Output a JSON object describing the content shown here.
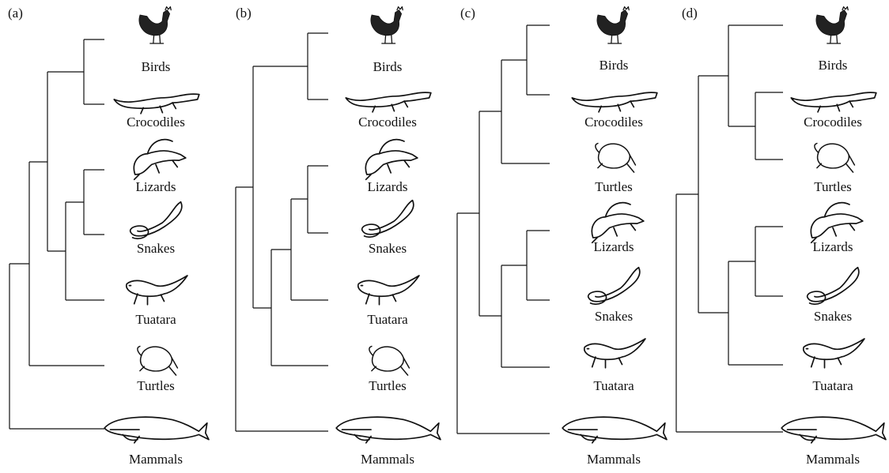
{
  "panels": [
    {
      "label": "(a)",
      "taxa": [
        "Birds",
        "Crocodiles",
        "Lizards",
        "Snakes",
        "Tuatara",
        "Turtles",
        "Mammals"
      ]
    },
    {
      "label": "(b)",
      "taxa": [
        "Birds",
        "Crocodiles",
        "Lizards",
        "Snakes",
        "Tuatara",
        "Turtles",
        "Mammals"
      ]
    },
    {
      "label": "(c)",
      "taxa": [
        "Birds",
        "Crocodiles",
        "Turtles",
        "Lizards",
        "Snakes",
        "Tuatara",
        "Mammals"
      ]
    },
    {
      "label": "(d)",
      "taxa": [
        "Birds",
        "Crocodiles",
        "Turtles",
        "Lizards",
        "Snakes",
        "Tuatara",
        "Mammals"
      ]
    }
  ]
}
